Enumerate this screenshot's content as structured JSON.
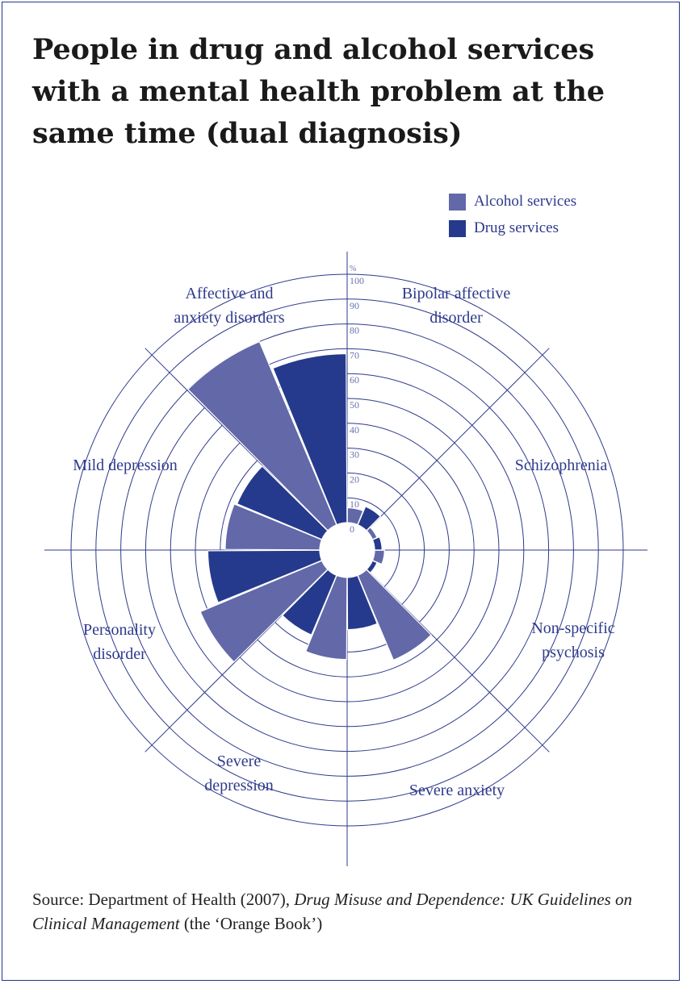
{
  "title": "People in drug and alcohol services with a mental health problem at the same time (dual diagnosis)",
  "source": {
    "prefix": "Source: Department of Health (2007), ",
    "italic": "Drug Misuse and Dependence: UK Guidelines on Clinical Management",
    "suffix": " (the ‘Orange Book’)"
  },
  "colors": {
    "alcohol": "#6268a8",
    "drug": "#253a8c",
    "line": "#2e3a8c",
    "label": "#2e3a8c"
  },
  "chart_data": {
    "type": "polar-bar",
    "unit": "%",
    "rlim": [
      0,
      100
    ],
    "ticks": [
      "0",
      "10",
      "20",
      "30",
      "40",
      "50",
      "60",
      "70",
      "80",
      "90",
      "100"
    ],
    "legend": {
      "position": "top-right",
      "entries": [
        "Alcohol services",
        "Drug services"
      ]
    },
    "categories": [
      "Bipolar affective disorder",
      "Schizophrenia",
      "Non-specific psychosis",
      "Severe anxiety",
      "Severe depression",
      "Personality disorder",
      "Mild depression",
      "Affective and anxiety disorders"
    ],
    "category_label_lines": [
      [
        "Bipolar affective",
        "disorder"
      ],
      [
        "Schizophrenia"
      ],
      [
        "Non-specific",
        "psychosis"
      ],
      [
        "Severe anxiety"
      ],
      [
        "Severe",
        "depression"
      ],
      [
        "Personality",
        "disorder"
      ],
      [
        "Mild depression"
      ],
      [
        "Affective and",
        "anxiety disorders"
      ]
    ],
    "series": [
      {
        "name": "Alcohol services",
        "values": [
          6,
          2,
          4,
          37,
          33,
          53,
          38,
          80
        ]
      },
      {
        "name": "Drug services",
        "values": [
          8,
          3,
          2,
          21,
          26,
          45,
          37,
          68
        ]
      }
    ]
  }
}
